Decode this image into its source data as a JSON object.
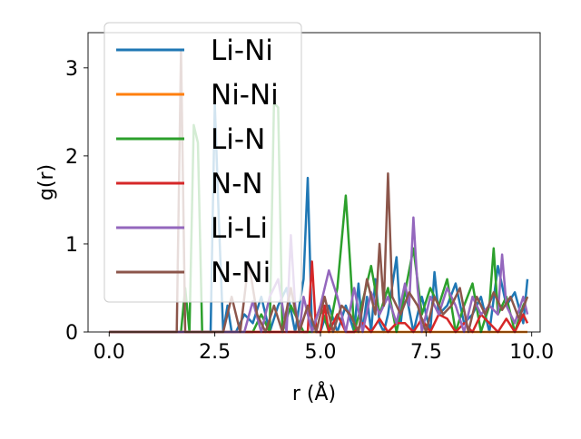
{
  "chart_data": {
    "type": "line",
    "title": "",
    "xlabel": "r (Å)",
    "ylabel": "g(r)",
    "xlim": [
      -0.5,
      10.2
    ],
    "ylim": [
      0,
      3.4
    ],
    "xticks": [
      0.0,
      2.5,
      5.0,
      7.5,
      10.0
    ],
    "xtick_labels": [
      "0.0",
      "2.5",
      "5.0",
      "7.5",
      "10.0"
    ],
    "yticks": [
      0,
      1,
      2,
      3
    ],
    "ytick_labels": [
      "0",
      "1",
      "2",
      "3"
    ],
    "grid": false,
    "legend_position": "top-left",
    "series": [
      {
        "name": "Li-Ni",
        "color": "#1f77b4",
        "x": [
          0.0,
          2.4,
          2.5,
          2.6,
          2.7,
          2.8,
          2.9,
          3.0,
          3.2,
          3.4,
          3.6,
          3.8,
          4.0,
          4.2,
          4.4,
          4.6,
          4.7,
          4.8,
          5.0,
          5.2,
          5.4,
          5.6,
          5.8,
          5.9,
          6.0,
          6.1,
          6.2,
          6.3,
          6.4,
          6.5,
          6.6,
          6.8,
          6.9,
          7.0,
          7.2,
          7.4,
          7.6,
          7.7,
          7.8,
          8.0,
          8.2,
          8.4,
          8.6,
          8.8,
          9.0,
          9.2,
          9.4,
          9.6,
          9.8,
          9.9
        ],
        "y": [
          0.0,
          0.0,
          2.6,
          1.2,
          0.0,
          0.3,
          0.0,
          0.0,
          0.2,
          0.1,
          0.4,
          0.0,
          0.3,
          0.5,
          0.0,
          0.6,
          1.75,
          0.0,
          0.0,
          0.3,
          0.0,
          0.3,
          0.0,
          0.55,
          0.0,
          0.4,
          0.0,
          0.6,
          0.1,
          0.0,
          0.2,
          0.85,
          0.1,
          0.5,
          0.0,
          0.4,
          0.0,
          0.68,
          0.2,
          0.3,
          0.55,
          0.1,
          0.2,
          0.4,
          0.0,
          0.75,
          0.3,
          0.45,
          0.1,
          0.6
        ]
      },
      {
        "name": "Ni-Ni",
        "color": "#ff7f0e",
        "x": [
          0.0,
          9.9
        ],
        "y": [
          0.0,
          0.0
        ]
      },
      {
        "name": "Li-N",
        "color": "#2ca02c",
        "x": [
          0.0,
          1.7,
          1.8,
          1.9,
          2.0,
          2.1,
          2.2,
          2.3,
          3.4,
          3.6,
          3.8,
          3.9,
          4.0,
          4.1,
          4.3,
          4.6,
          4.8,
          5.0,
          5.2,
          5.4,
          5.6,
          5.7,
          5.8,
          6.0,
          6.2,
          6.4,
          6.6,
          6.8,
          7.0,
          7.2,
          7.4,
          7.6,
          7.8,
          8.0,
          8.2,
          8.4,
          8.6,
          8.8,
          9.0,
          9.1,
          9.2,
          9.4,
          9.6,
          9.8,
          9.9
        ],
        "y": [
          0.0,
          0.0,
          0.5,
          0.0,
          2.35,
          2.15,
          0.0,
          0.0,
          0.0,
          0.2,
          0.0,
          2.6,
          2.55,
          0.0,
          0.3,
          0.0,
          0.0,
          0.3,
          0.0,
          0.5,
          1.55,
          0.8,
          0.0,
          0.35,
          0.75,
          0.2,
          0.5,
          0.0,
          0.45,
          0.95,
          0.2,
          0.5,
          0.3,
          0.6,
          0.0,
          0.3,
          0.55,
          0.0,
          0.3,
          0.95,
          0.2,
          0.4,
          0.0,
          0.3,
          0.4
        ]
      },
      {
        "name": "N-N",
        "color": "#d62728",
        "x": [
          0.0,
          4.7,
          4.8,
          4.9,
          5.0,
          5.1,
          5.2,
          5.4,
          5.6,
          5.8,
          6.0,
          6.2,
          6.4,
          6.6,
          6.8,
          7.0,
          7.2,
          7.4,
          7.6,
          7.8,
          8.0,
          8.2,
          8.4,
          8.6,
          8.8,
          9.0,
          9.2,
          9.4,
          9.6,
          9.8,
          9.9
        ],
        "y": [
          0.0,
          0.0,
          0.8,
          0.0,
          0.0,
          0.3,
          0.0,
          0.2,
          0.0,
          0.0,
          0.1,
          0.0,
          0.15,
          0.0,
          0.1,
          0.1,
          0.0,
          0.15,
          0.0,
          0.2,
          0.15,
          0.0,
          0.1,
          0.0,
          0.2,
          0.1,
          0.0,
          0.15,
          0.0,
          0.2,
          0.1
        ]
      },
      {
        "name": "Li-Li",
        "color": "#9467bd",
        "x": [
          0.0,
          3.2,
          3.4,
          3.6,
          3.8,
          4.0,
          4.2,
          4.3,
          4.4,
          4.5,
          4.6,
          4.8,
          5.0,
          5.2,
          5.4,
          5.6,
          5.8,
          6.0,
          6.2,
          6.4,
          6.6,
          6.8,
          7.0,
          7.1,
          7.2,
          7.3,
          7.4,
          7.6,
          7.8,
          8.0,
          8.2,
          8.4,
          8.6,
          8.8,
          9.0,
          9.2,
          9.3,
          9.4,
          9.6,
          9.8,
          9.9
        ],
        "y": [
          0.0,
          0.0,
          0.35,
          0.0,
          0.4,
          0.6,
          0.0,
          1.1,
          0.3,
          0.0,
          0.4,
          0.0,
          0.3,
          0.7,
          0.4,
          0.0,
          0.5,
          0.0,
          0.45,
          0.2,
          0.4,
          0.1,
          0.55,
          0.3,
          1.3,
          0.5,
          0.0,
          0.4,
          0.2,
          0.5,
          0.3,
          0.0,
          0.4,
          0.2,
          0.3,
          0.2,
          0.88,
          0.3,
          0.1,
          0.4,
          0.2
        ]
      },
      {
        "name": "N-Ni",
        "color": "#8c564b",
        "x": [
          0.0,
          1.6,
          1.7,
          1.8,
          1.9,
          2.5,
          2.7,
          2.9,
          3.1,
          3.3,
          3.5,
          3.7,
          3.9,
          4.1,
          4.3,
          4.5,
          4.7,
          4.9,
          5.1,
          5.3,
          5.5,
          5.7,
          5.9,
          6.1,
          6.3,
          6.4,
          6.5,
          6.6,
          6.7,
          6.9,
          7.1,
          7.3,
          7.5,
          7.7,
          7.9,
          8.1,
          8.3,
          8.5,
          8.7,
          8.9,
          9.1,
          9.3,
          9.5,
          9.7,
          9.9
        ],
        "y": [
          0.0,
          0.0,
          3.2,
          0.0,
          0.0,
          0.0,
          0.0,
          0.4,
          0.0,
          0.8,
          0.2,
          0.0,
          0.3,
          0.0,
          0.5,
          0.0,
          0.3,
          0.0,
          0.4,
          0.0,
          0.3,
          0.2,
          0.0,
          0.6,
          0.2,
          1.0,
          0.3,
          1.8,
          0.4,
          0.2,
          0.45,
          0.3,
          0.0,
          0.4,
          0.2,
          0.3,
          0.5,
          0.0,
          0.4,
          0.2,
          0.45,
          0.25,
          0.4,
          0.15,
          0.4
        ]
      }
    ]
  }
}
